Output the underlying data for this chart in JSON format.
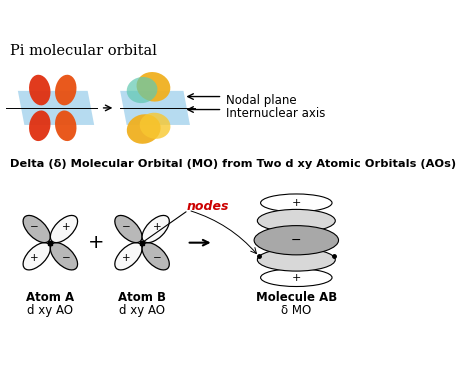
{
  "title_top": "Pi molecular orbital",
  "title_bottom": "Delta (δ) Molecular Orbital (MO) from Two d xy Atomic Orbitals (AOs)",
  "label_nodal": "Nodal plane",
  "label_internuclear": "Internuclear axis",
  "label_nodes": "nodes",
  "label_atomA": "Atom A",
  "label_atomB": "Atom B",
  "label_molAB": "Molecule AB",
  "label_dxyA": "d xy AO",
  "label_dxyB": "d xy AO",
  "label_deltaMO": "δ MO",
  "bg_color": "#ffffff",
  "orange_red": "#e03010",
  "orange_mid": "#e85010",
  "yellow_gold": "#f0b020",
  "blue_plane": "#90c8e8",
  "teal_lobe": "#60c8b0",
  "gray_lobe": "#b8b8b8",
  "white_lobe": "#f8f8f8",
  "red_nodes": "#cc0000",
  "gray_mo": "#a8a8a8",
  "lgray_mo": "#d8d8d8"
}
